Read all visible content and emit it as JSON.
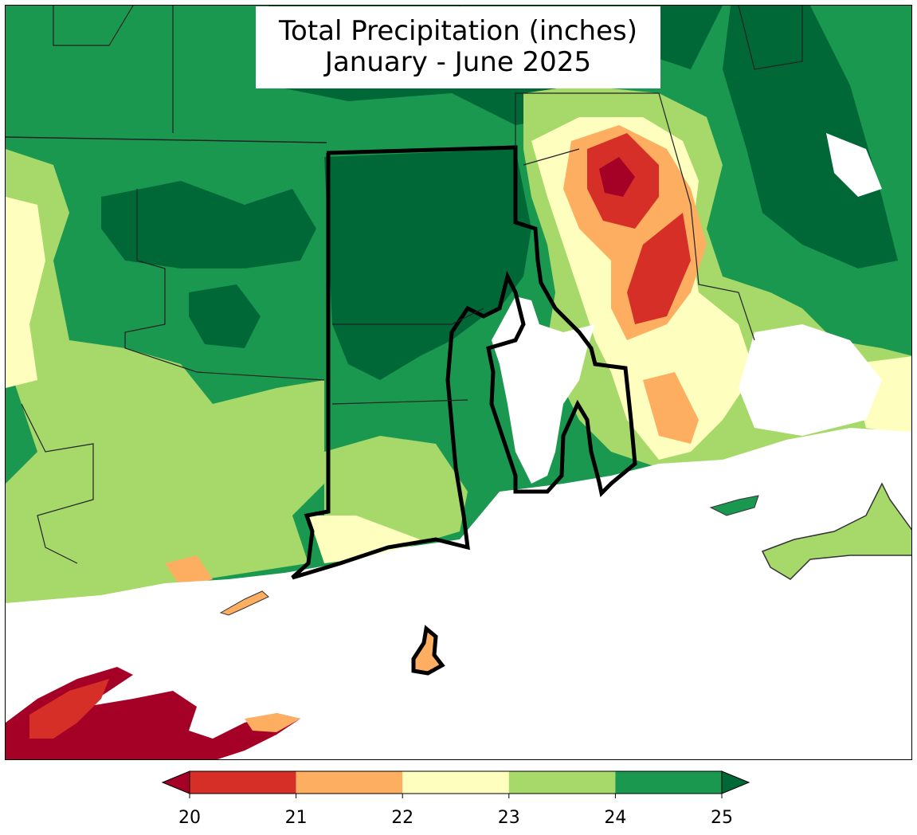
{
  "title": {
    "line1": "Total Precipitation (inches)",
    "line2": "January - June 2025"
  },
  "colorbar": {
    "ticks": [
      "20",
      "21",
      "22",
      "23",
      "24",
      "25"
    ],
    "bins": [
      {
        "range": [
          20,
          21
        ],
        "color": "#d62f27"
      },
      {
        "range": [
          21,
          22
        ],
        "color": "#fdae61"
      },
      {
        "range": [
          22,
          23
        ],
        "color": "#fefebe"
      },
      {
        "range": [
          23,
          24
        ],
        "color": "#a6d96a"
      },
      {
        "range": [
          24,
          25
        ],
        "color": "#1a9850"
      }
    ],
    "under_color": "#a50026",
    "over_color": "#006837",
    "extend": "both"
  },
  "colors": {
    "water": "#ffffff",
    "state_border": "#000000",
    "county_border": "#333333"
  }
}
